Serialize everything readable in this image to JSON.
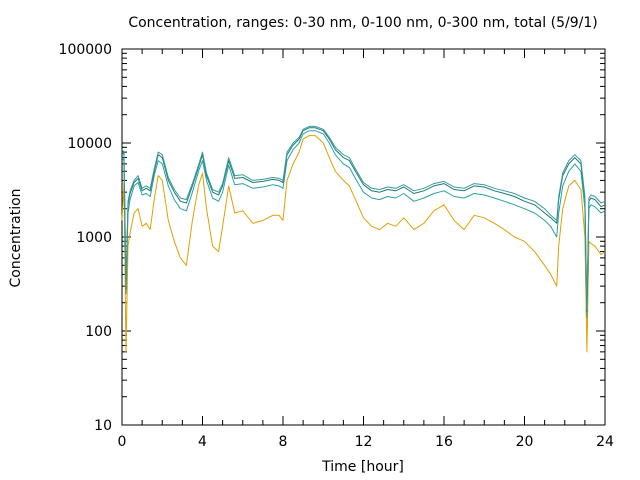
{
  "chart_data": {
    "type": "line",
    "title": "Concentration, ranges: 0-30 nm, 0-100 nm, 0-300 nm, total (5/9/1)",
    "xlabel": "Time [hour]",
    "ylabel": "Concentration",
    "xlim": [
      0,
      24
    ],
    "ylim": [
      10,
      100000
    ],
    "yscale": "log",
    "xticks": [
      0,
      4,
      8,
      12,
      16,
      20,
      24
    ],
    "xtick_labels": [
      "0",
      "4",
      "8",
      "12",
      "16",
      "20",
      "24"
    ],
    "yticks": [
      10,
      100,
      1000,
      10000,
      100000
    ],
    "ytick_labels": [
      "10",
      "100",
      "1000",
      "10000",
      "100000"
    ],
    "grid": false,
    "legend": "none",
    "x": [
      0,
      0.1,
      0.2,
      0.3,
      0.4,
      0.6,
      0.8,
      1.0,
      1.2,
      1.4,
      1.6,
      1.8,
      2.0,
      2.3,
      2.6,
      2.9,
      3.2,
      3.5,
      3.8,
      4.0,
      4.2,
      4.5,
      4.8,
      5.0,
      5.3,
      5.6,
      6.0,
      6.5,
      7.0,
      7.5,
      7.8,
      8.0,
      8.2,
      8.5,
      8.8,
      9.0,
      9.3,
      9.6,
      10.0,
      10.3,
      10.6,
      11.0,
      11.3,
      11.6,
      12.0,
      12.4,
      12.8,
      13.2,
      13.6,
      14.0,
      14.5,
      15.0,
      15.5,
      16.0,
      16.5,
      17.0,
      17.5,
      18.0,
      18.5,
      19.0,
      19.5,
      20.0,
      20.5,
      21.0,
      21.3,
      21.6,
      21.7,
      21.9,
      22.2,
      22.5,
      22.8,
      23.0,
      23.1,
      23.2,
      23.3,
      23.5,
      23.8,
      24.0
    ],
    "series": [
      {
        "color": "#e0a000",
        "values": [
          1500,
          3800,
          60,
          800,
          1100,
          1800,
          2000,
          1300,
          1400,
          1200,
          2500,
          4500,
          4000,
          1500,
          900,
          600,
          500,
          1500,
          3500,
          4800,
          2000,
          800,
          700,
          1300,
          3500,
          1800,
          1900,
          1400,
          1500,
          1700,
          1700,
          1500,
          4000,
          6000,
          8000,
          11000,
          12000,
          12000,
          10000,
          7000,
          5000,
          4000,
          3500,
          2500,
          1600,
          1300,
          1200,
          1400,
          1300,
          1600,
          1200,
          1400,
          1900,
          2200,
          1500,
          1200,
          1700,
          1600,
          1400,
          1200,
          1000,
          900,
          700,
          500,
          400,
          300,
          800,
          2000,
          3500,
          4000,
          3200,
          1000,
          60,
          900,
          850,
          800,
          650,
          700
        ]
      },
      {
        "color": "#2aa0a8",
        "values": [
          7000,
          6500,
          250,
          1800,
          2500,
          3500,
          3800,
          2800,
          2900,
          2700,
          4500,
          6500,
          6000,
          3500,
          2500,
          2000,
          1900,
          3000,
          5000,
          6500,
          4000,
          2600,
          2400,
          3000,
          5800,
          3600,
          3700,
          3300,
          3400,
          3600,
          3500,
          3300,
          6500,
          8500,
          10000,
          12500,
          13500,
          13500,
          12500,
          10000,
          7500,
          6000,
          5500,
          4200,
          3000,
          2600,
          2500,
          2700,
          2600,
          2900,
          2400,
          2600,
          2900,
          3100,
          2700,
          2600,
          2900,
          2800,
          2600,
          2400,
          2200,
          2000,
          1800,
          1500,
          1300,
          1000,
          1800,
          3500,
          5000,
          6000,
          5000,
          2000,
          140,
          2000,
          2200,
          2100,
          1800,
          1900
        ]
      },
      {
        "color": "#1a7a7a",
        "values": [
          8000,
          7500,
          280,
          2200,
          2900,
          3800,
          4200,
          3100,
          3300,
          3100,
          5000,
          7500,
          7000,
          4000,
          3000,
          2400,
          2300,
          3500,
          5500,
          7500,
          4500,
          3000,
          2800,
          3500,
          6500,
          4200,
          4300,
          3800,
          3900,
          4100,
          4000,
          3800,
          7500,
          9500,
          11000,
          13500,
          14500,
          14500,
          13500,
          11000,
          8500,
          7000,
          6500,
          5000,
          3600,
          3100,
          3000,
          3200,
          3100,
          3400,
          2900,
          3100,
          3500,
          3700,
          3200,
          3100,
          3500,
          3400,
          3100,
          2900,
          2700,
          2400,
          2200,
          1800,
          1600,
          1400,
          2500,
          4500,
          6000,
          7000,
          6000,
          2500,
          160,
          2400,
          2600,
          2500,
          2100,
          2200
        ]
      },
      {
        "color": "#3a9a9a",
        "values": [
          8500,
          8000,
          300,
          2400,
          3100,
          4000,
          4500,
          3300,
          3500,
          3300,
          5300,
          8000,
          7500,
          4300,
          3200,
          2600,
          2500,
          3700,
          5800,
          8000,
          4800,
          3200,
          3000,
          3700,
          7000,
          4500,
          4600,
          4000,
          4100,
          4300,
          4200,
          4000,
          8000,
          10000,
          11500,
          14000,
          15000,
          15000,
          14000,
          11500,
          9000,
          7500,
          7000,
          5300,
          3800,
          3300,
          3200,
          3400,
          3300,
          3600,
          3100,
          3300,
          3700,
          3900,
          3400,
          3300,
          3700,
          3600,
          3300,
          3100,
          2900,
          2600,
          2400,
          2000,
          1700,
          1500,
          2700,
          4800,
          6500,
          7500,
          6500,
          2700,
          170,
          2600,
          2800,
          2700,
          2300,
          2400
        ]
      }
    ]
  }
}
